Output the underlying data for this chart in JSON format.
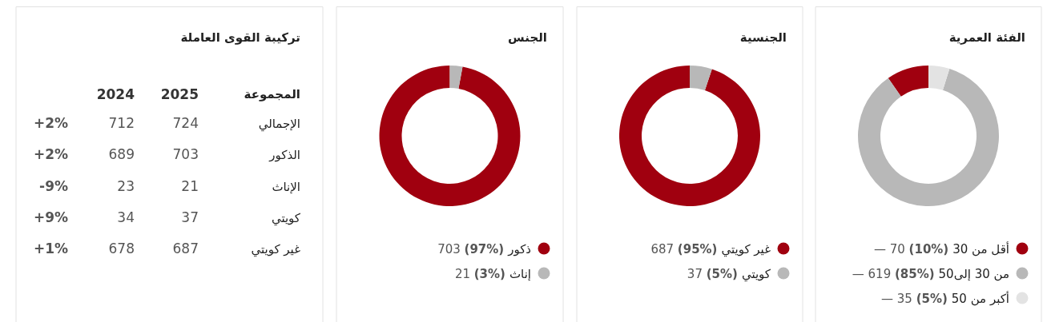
{
  "chart_data": [
    {
      "type": "donut",
      "title": "الفئة العمرية",
      "categories": [
        "أقل من 30",
        "من 30 إلى50",
        "أكبر من 50"
      ],
      "values": [
        70,
        619,
        35
      ],
      "value_labels": [
        "— 70 (10%)",
        "— 619 (85%)",
        "— 35 (5%)"
      ],
      "colors": [
        "#a0000f",
        "#b8b8b8",
        "#e3e3e3"
      ],
      "legend": "bottom"
    },
    {
      "type": "donut",
      "title": "الجنسية",
      "categories": [
        "غير كويتي",
        "كويتي"
      ],
      "values": [
        687,
        37
      ],
      "value_labels": [
        "687 (95%)",
        "37 (5%)"
      ],
      "colors": [
        "#a0000f",
        "#b8b8b8"
      ],
      "legend": "bottom"
    },
    {
      "type": "donut",
      "title": "الجنس",
      "categories": [
        "ذكور",
        "إناث"
      ],
      "values": [
        703,
        21
      ],
      "value_labels": [
        "703 (97%)",
        "21 (3%)"
      ],
      "colors": [
        "#a0000f",
        "#b8b8b8"
      ],
      "legend": "bottom"
    },
    {
      "type": "other",
      "title": "تركيبة القوى العاملة",
      "ylabel": "المجموعة",
      "categories": [
        "الإجمالي",
        "الذكور",
        "الإناث",
        "كويتي",
        "غير كويتي"
      ],
      "data_labels": true,
      "series": [
        {
          "name": "2025",
          "values": [
            724,
            703,
            21,
            37,
            687
          ]
        },
        {
          "name": "2024",
          "values": [
            712,
            689,
            23,
            34,
            678
          ]
        },
        {
          "values": [
            2,
            2,
            -9,
            9,
            1
          ],
          "value_labels": [
            "+2%",
            "+2%",
            "-9%",
            "+9%",
            "+1%"
          ]
        }
      ]
    }
  ]
}
